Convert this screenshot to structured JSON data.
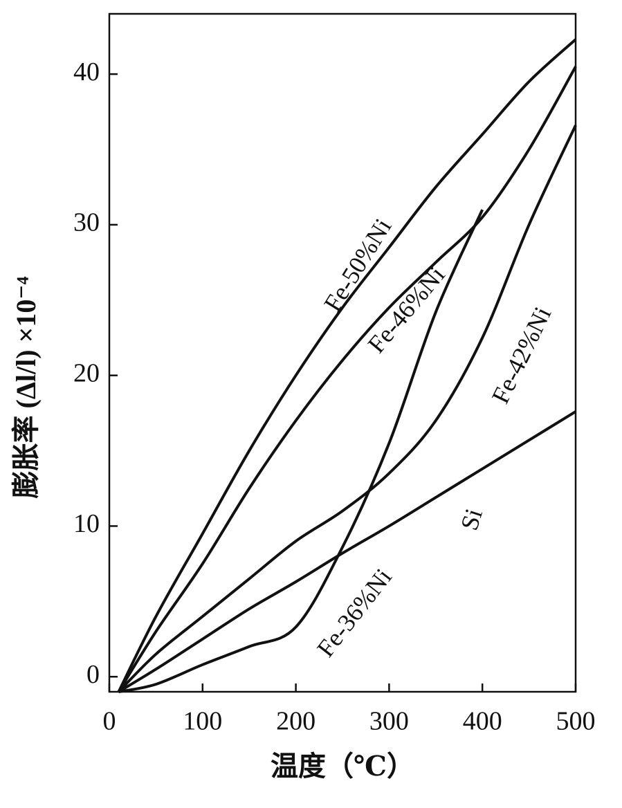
{
  "chart_data": {
    "type": "line",
    "x_label": "温度（℃）",
    "y_label": "膨胀率 (Δl/l) ×10⁻⁴",
    "x": [
      10,
      50,
      100,
      150,
      200,
      250,
      300,
      350,
      400,
      450,
      500
    ],
    "series": [
      {
        "name": "Fe-50%Ni",
        "color": "#111111",
        "values": [
          -1,
          4,
          9.5,
          15,
          20,
          24.5,
          28.5,
          32.5,
          36,
          39.5,
          42.3
        ]
      },
      {
        "name": "Fe-46%Ni",
        "color": "#111111",
        "values": [
          -1,
          3,
          7.5,
          12.5,
          17,
          21,
          24.5,
          27.5,
          30.5,
          35,
          40.5
        ]
      },
      {
        "name": "Fe-42%Ni",
        "color": "#111111",
        "values": [
          -1,
          1.5,
          4,
          6.5,
          9,
          11,
          13.5,
          17,
          22.5,
          30,
          36.6
        ]
      },
      {
        "name": "Si",
        "color": "#111111",
        "values": [
          -1,
          0.5,
          2.5,
          4.5,
          6.3,
          8.2,
          10,
          11.9,
          13.8,
          15.7,
          17.6
        ]
      },
      {
        "name": "Fe-36%Ni",
        "color": "#111111",
        "values": [
          -1,
          -0.5,
          0.8,
          2,
          3.3,
          8.6,
          15.5,
          24.2,
          31,
          null,
          null
        ]
      }
    ],
    "xlim": [
      0,
      500
    ],
    "xticks": [
      0,
      100,
      200,
      300,
      400,
      500
    ],
    "ylim": [
      -1,
      44
    ],
    "yticks": [
      0,
      10,
      20,
      30,
      40
    ],
    "grid": false,
    "legend": false
  }
}
